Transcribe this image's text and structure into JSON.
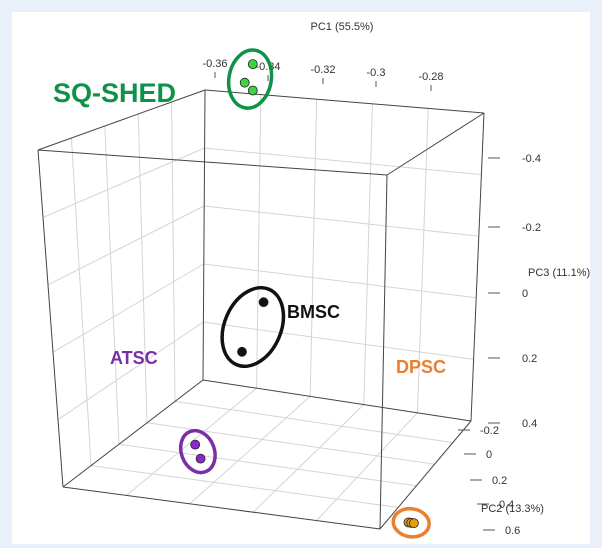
{
  "chart_data": {
    "type": "scatter",
    "title": "",
    "axes": {
      "pc1": {
        "label": "PC1 (55.5%)",
        "ticks": [
          "-0.36",
          "-0.34",
          "-0.32",
          "-0.3",
          "-0.28"
        ]
      },
      "pc2": {
        "label": "PC2 (13.3%)",
        "ticks": [
          "-0.2",
          "0",
          "0.2",
          "0.4",
          "0.6"
        ]
      },
      "pc3": {
        "label": "PC3 (11.1%)",
        "ticks": [
          "-0.4",
          "-0.2",
          "0",
          "0.2",
          "0.4"
        ]
      }
    },
    "grid": true,
    "groups": [
      {
        "name": "SQ-SHED",
        "color": "#0e9247",
        "point_color": "#3ed43e",
        "points": [
          {
            "pc1": -0.347,
            "pc2": -0.05,
            "pc3": -0.52
          },
          {
            "pc1": -0.35,
            "pc2": -0.05,
            "pc3": -0.46
          },
          {
            "pc1": -0.347,
            "pc2": -0.05,
            "pc3": -0.44
          }
        ]
      },
      {
        "name": "BMSC",
        "color": "#111111",
        "point_color": "#111111",
        "points": [
          {
            "pc1": -0.342,
            "pc2": 0.1,
            "pc3": 0.0
          },
          {
            "pc1": -0.35,
            "pc2": 0.1,
            "pc3": 0.16
          }
        ]
      },
      {
        "name": "ATSC",
        "color": "#7a2fa6",
        "point_color": "#8e28c6",
        "points": [
          {
            "pc1": -0.366,
            "pc2": 0.3,
            "pc3": 0.2
          },
          {
            "pc1": -0.364,
            "pc2": 0.3,
            "pc3": 0.24
          }
        ]
      },
      {
        "name": "DPSC",
        "color": "#ea7f2f",
        "point_color": "#e0a010",
        "points": [
          {
            "pc1": -0.287,
            "pc2": 0.3,
            "pc3": 0.34
          },
          {
            "pc1": -0.286,
            "pc2": 0.3,
            "pc3": 0.34
          },
          {
            "pc1": -0.285,
            "pc2": 0.3,
            "pc3": 0.34
          }
        ]
      }
    ]
  }
}
